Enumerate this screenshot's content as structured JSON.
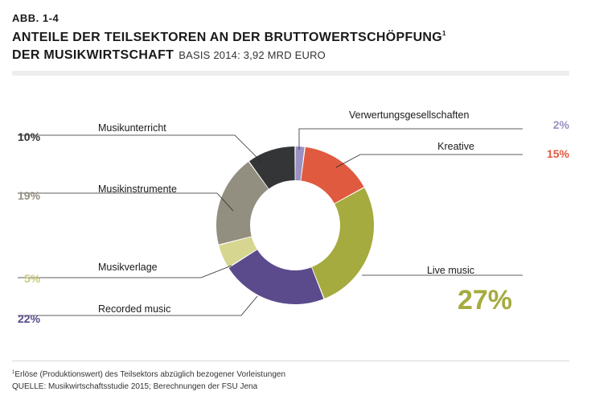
{
  "header": {
    "abb": "ABB. 1-4",
    "title_line1": "ANTEILE DER TEILSEKTOREN AN DER BRUTTOWERTSCHÖPFUNG",
    "title_sup": "1",
    "title_line2": "DER MUSIKWIRTSCHAFT",
    "subtitle": "BASIS 2014: 3,92 MRD EURO"
  },
  "footer": {
    "footnote_mark": "1",
    "footnote": "Erlöse (Produktionswert) des Teilsektors abzüglich bezogener Vorleistungen",
    "source": "QUELLE: Musikwirtschaftsstudie 2015; Berechnungen der FSU Jena"
  },
  "chart_data": {
    "type": "pie",
    "variant": "donut",
    "title": "Anteile der Teilsektoren an der Bruttowertschöpfung der Musikwirtschaft",
    "base": "Basis 2014: 3,92 Mrd Euro",
    "unit": "%",
    "series": [
      {
        "name": "Verwertungsgesellschaften",
        "value": 2,
        "label": "2%",
        "color": "#9a90c2"
      },
      {
        "name": "Kreative",
        "value": 15,
        "label": "15%",
        "color": "#e05a3f"
      },
      {
        "name": "Live music",
        "value": 27,
        "label": "27%",
        "color": "#a5ab3e"
      },
      {
        "name": "Recorded music",
        "value": 22,
        "label": "22%",
        "color": "#5b4b8c"
      },
      {
        "name": "Musikverlage",
        "value": 5,
        "label": "5%",
        "color": "#d6d690"
      },
      {
        "name": "Musikinstrumente",
        "value": 19,
        "label": "19%",
        "color": "#938f80"
      },
      {
        "name": "Musikunterricht",
        "value": 10,
        "label": "10%",
        "color": "#333537"
      }
    ]
  }
}
